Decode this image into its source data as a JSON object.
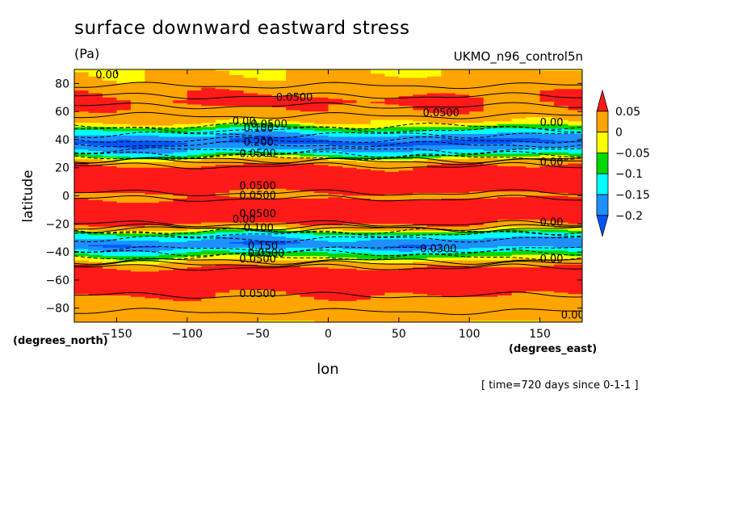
{
  "header": {
    "title": "surface downward eastward stress",
    "units": "(Pa)",
    "model": "UKMO_n96_control5n",
    "time_note": "[ time=720 days since 0-1-1 ]"
  },
  "colors": {
    "band_strong_pos": "#ff1a1a",
    "band_pos": "#ffa500",
    "band_zero_neg": "#ffff00",
    "band_neg1": "#00d800",
    "band_neg2": "#00ffff",
    "band_neg3": "#1e90ff",
    "band_neg4": "#0055ff"
  },
  "chart_data": {
    "type": "heatmap",
    "title": "surface downward eastward stress",
    "subtitle": "(Pa)",
    "xlabel": "lon",
    "ylabel": "latitude",
    "x_unit": "(degrees_east)",
    "y_unit": "(degrees_north)",
    "xlim": [
      -180,
      180
    ],
    "ylim": [
      -90,
      90
    ],
    "x_ticks": [
      -150,
      -100,
      -50,
      0,
      50,
      100,
      150
    ],
    "y_ticks": [
      -80,
      -60,
      -40,
      -20,
      0,
      20,
      40,
      60,
      80
    ],
    "colorbar": {
      "levels": [
        0.05,
        0,
        -0.05,
        -0.1,
        -0.15,
        -0.2
      ],
      "labels": [
        "0.05",
        "0",
        "−0.05",
        "−0.1",
        "−0.15",
        "−0.2"
      ],
      "colors": [
        "#ff1a1a",
        "#ffa500",
        "#ffff00",
        "#00d800",
        "#00ffff",
        "#1e90ff",
        "#0055ff"
      ]
    },
    "zonal_profile": [
      {
        "lat": -90,
        "value": 0.02
      },
      {
        "lat": -75,
        "value": 0.03
      },
      {
        "lat": -65,
        "value": 0.08
      },
      {
        "lat": -55,
        "value": 0.09
      },
      {
        "lat": -47,
        "value": 0.01
      },
      {
        "lat": -42,
        "value": -0.08
      },
      {
        "lat": -35,
        "value": -0.2
      },
      {
        "lat": -28,
        "value": -0.12
      },
      {
        "lat": -23,
        "value": 0.02
      },
      {
        "lat": -15,
        "value": 0.1
      },
      {
        "lat": -5,
        "value": 0.08
      },
      {
        "lat": 0,
        "value": 0.03
      },
      {
        "lat": 5,
        "value": 0.08
      },
      {
        "lat": 15,
        "value": 0.1
      },
      {
        "lat": 25,
        "value": 0.02
      },
      {
        "lat": 30,
        "value": -0.12
      },
      {
        "lat": 38,
        "value": -0.22
      },
      {
        "lat": 46,
        "value": -0.12
      },
      {
        "lat": 52,
        "value": 0.0
      },
      {
        "lat": 60,
        "value": 0.04
      },
      {
        "lat": 68,
        "value": 0.06
      },
      {
        "lat": 80,
        "value": 0.02
      },
      {
        "lat": 90,
        "value": 0.0
      }
    ],
    "contour_labels": [
      {
        "text": "0.00",
        "lon": -165,
        "lat": 86
      },
      {
        "text": "0.0500",
        "lon": -37,
        "lat": 70
      },
      {
        "text": "0.0500",
        "lon": 67,
        "lat": 59
      },
      {
        "text": "0.00",
        "lon": -68,
        "lat": 53
      },
      {
        "text": "0.0500",
        "lon": -55,
        "lat": 51
      },
      {
        "text": "0.100",
        "lon": -60,
        "lat": 48
      },
      {
        "text": "0.00",
        "lon": 150,
        "lat": 52
      },
      {
        "text": "0.200",
        "lon": -60,
        "lat": 38
      },
      {
        "text": "0.0500",
        "lon": -63,
        "lat": 30
      },
      {
        "text": "0.00",
        "lon": 150,
        "lat": 24
      },
      {
        "text": "0.0500",
        "lon": -63,
        "lat": 7
      },
      {
        "text": "0.0500",
        "lon": -63,
        "lat": 0
      },
      {
        "text": "0.0500",
        "lon": -63,
        "lat": -13
      },
      {
        "text": "0.00",
        "lon": -68,
        "lat": -17
      },
      {
        "text": "0.100",
        "lon": -60,
        "lat": -23
      },
      {
        "text": "0.00",
        "lon": 150,
        "lat": -19
      },
      {
        "text": "0.150",
        "lon": -57,
        "lat": -36
      },
      {
        "text": "0.0500",
        "lon": -57,
        "lat": -41
      },
      {
        "text": "0.0500",
        "lon": -63,
        "lat": -45
      },
      {
        "text": "0.0300",
        "lon": 65,
        "lat": -38
      },
      {
        "text": "0.00",
        "lon": 150,
        "lat": -45
      },
      {
        "text": "0.0500",
        "lon": -63,
        "lat": -70
      },
      {
        "text": "0.00",
        "lon": 165,
        "lat": -85
      }
    ]
  }
}
